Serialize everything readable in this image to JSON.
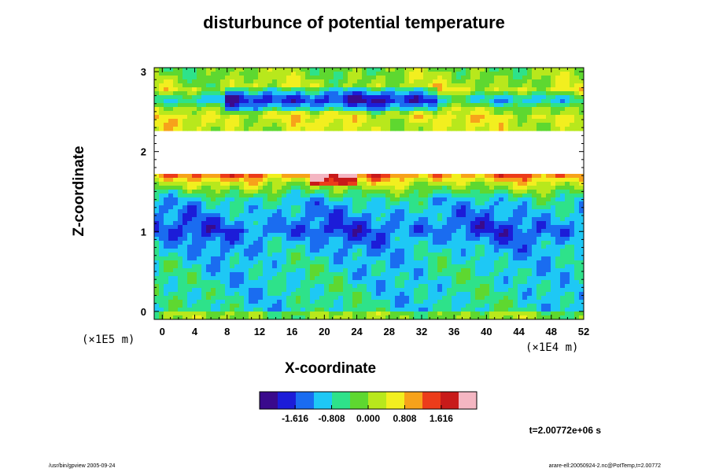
{
  "footer": {
    "left": "/usr/bin/gpview 2005-09-24",
    "right": "arare-ell:20050924-2.nc@PotTemp,t=2.00772"
  },
  "chart_data": {
    "type": "heatmap",
    "title": "disturbunce of potential temperature",
    "xlabel": "X-coordinate",
    "ylabel": "Z-coordinate",
    "x_scale_label": "(×1E4 m)",
    "y_scale_label": "(×1E5 m)",
    "xlim": [
      -1,
      52
    ],
    "ylim": [
      -0.1,
      3.05
    ],
    "x_ticks": [
      0,
      4,
      8,
      12,
      16,
      20,
      24,
      28,
      32,
      36,
      40,
      44,
      48,
      52
    ],
    "x_tick_labels": [
      "0",
      "4",
      "8",
      "12",
      "16",
      "20",
      "24",
      "28",
      "32",
      "36",
      "40",
      "44",
      "48",
      "52"
    ],
    "y_ticks": [
      0,
      1,
      2,
      3
    ],
    "y_tick_labels": [
      "0",
      "1",
      "2",
      "3"
    ],
    "time_label": "t=2.00772e+06 s",
    "colorbar": {
      "range": [
        -2.4,
        2.4
      ],
      "tick_values": [
        -1.616,
        -0.808,
        0.0,
        0.808,
        1.616
      ],
      "tick_labels": [
        "-1.616",
        "-0.808",
        "0.000",
        "0.808",
        "1.616"
      ]
    },
    "colormap": [
      "#3a0a8c",
      "#1c1cd8",
      "#1a6cf0",
      "#1ec8f5",
      "#2ee28a",
      "#5ed830",
      "#b8e81c",
      "#f2ef1f",
      "#f7a21b",
      "#ec3c1a",
      "#c81a1a",
      "#f4b6c2"
    ],
    "approx_profile": [
      {
        "z": 0.0,
        "value": -0.75
      },
      {
        "z": 0.3,
        "value": -0.8
      },
      {
        "z": 0.6,
        "value": -0.85
      },
      {
        "z": 0.85,
        "value": -1.1
      },
      {
        "z": 1.0,
        "value": -1.55
      },
      {
        "z": 1.2,
        "value": -1.2
      },
      {
        "z": 1.4,
        "value": -0.85
      },
      {
        "z": 1.6,
        "value": 0.3
      },
      {
        "z": 1.7,
        "value": 1.1
      },
      {
        "z": 2.1,
        "value": null
      },
      {
        "z": 2.45,
        "value": 0.5
      },
      {
        "z": 2.65,
        "value": -1.4
      },
      {
        "z": 2.8,
        "value": 0.2
      },
      {
        "z": 3.0,
        "value": -0.1
      }
    ],
    "missing_band_z": [
      1.74,
      2.25
    ]
  }
}
